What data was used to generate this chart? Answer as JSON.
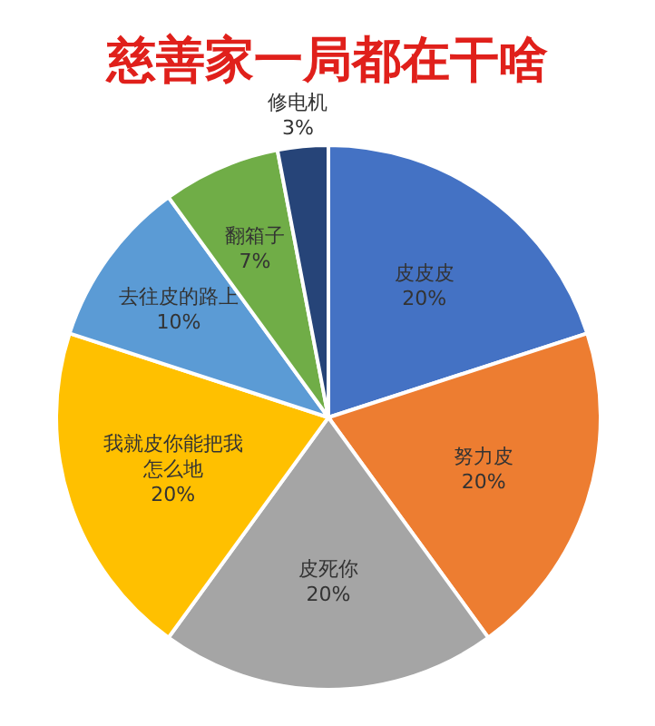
{
  "chart_data": {
    "type": "pie",
    "title": "慈善家一局都在干啥",
    "categories": [
      "皮皮皮",
      "努力皮",
      "皮死你",
      "我就皮你能把我怎么地",
      "去往皮的路上",
      "翻箱子",
      "修电机"
    ],
    "values": [
      20,
      20,
      20,
      20,
      10,
      7,
      3
    ],
    "value_labels": [
      "20%",
      "20%",
      "20%",
      "20%",
      "10%",
      "7%",
      "3%"
    ],
    "colors": [
      "#4472c4",
      "#ed7d31",
      "#a5a5a5",
      "#ffc000",
      "#5b9bd5",
      "#70ad47",
      "#264478"
    ]
  }
}
